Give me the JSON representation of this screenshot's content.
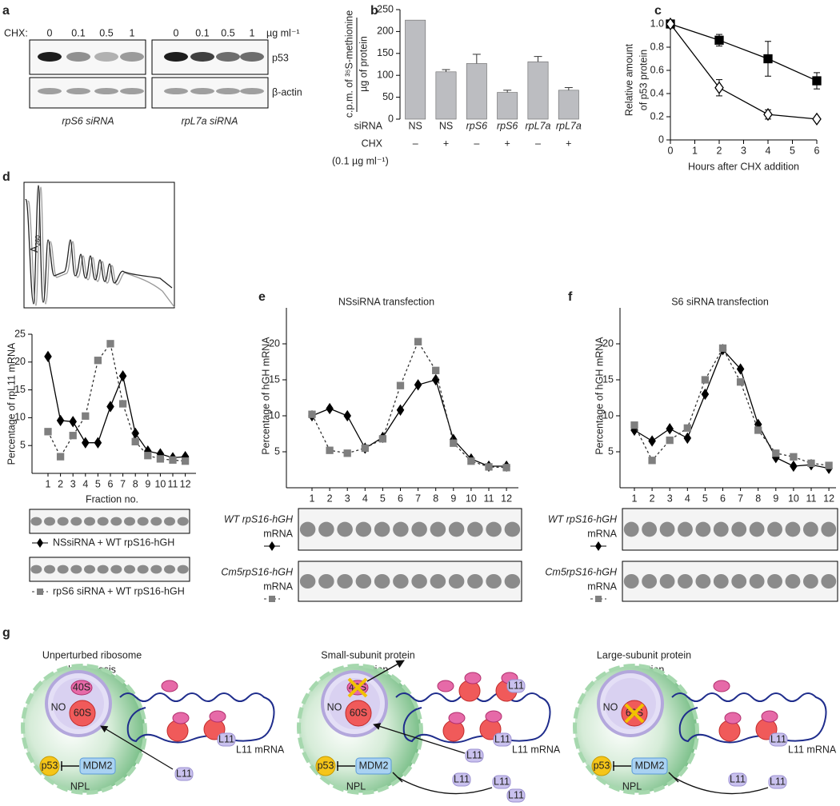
{
  "panel_labels": [
    "a",
    "b",
    "c",
    "d",
    "e",
    "f",
    "g"
  ],
  "panel_a": {
    "chx_label": "CHX:",
    "doses": [
      "0",
      "0.1",
      "0.5",
      "1"
    ],
    "unit": "µg ml⁻¹",
    "bands": [
      "p53",
      "β-actin"
    ],
    "sirnas": [
      "rpS6 siRNA",
      "rpL7a siRNA"
    ]
  },
  "panel_d": {
    "profile_label": "A",
    "profile_sub": "260"
  },
  "chart_data": [
    {
      "type": "bar",
      "ylabel": [
        "c.p.m. of ³⁵S-methionine",
        "µg of protein"
      ],
      "categories": [
        "NS",
        "NS",
        "rpS6",
        "rpS6",
        "rpL7a",
        "rpL7a"
      ],
      "chx": [
        "–",
        "+",
        "–",
        "+",
        "–",
        "+"
      ],
      "row_labels": [
        "siRNA",
        "CHX"
      ],
      "chx_note": "(0.1 µg ml⁻¹)",
      "values": [
        226,
        108,
        127,
        61,
        131,
        66
      ],
      "errors": [
        null,
        5,
        21,
        5,
        12,
        6
      ],
      "color": "#bcbdc1",
      "ylim": [
        0,
        250
      ],
      "yticks": [
        0,
        50,
        100,
        150,
        200,
        250
      ]
    },
    {
      "type": "line",
      "xlabel": "Hours after CHX addition",
      "ylabel": [
        "Relative amount",
        "of p53 protein"
      ],
      "x": [
        0,
        2,
        4,
        6
      ],
      "xlim": [
        0,
        6
      ],
      "xticks": [
        0,
        1,
        2,
        3,
        4,
        5,
        6
      ],
      "ylim": [
        0,
        1
      ],
      "yticks": [
        0,
        0.2,
        0.4,
        0.6,
        0.8,
        {
          "value": 1,
          "label": "1.0"
        }
      ],
      "series": [
        {
          "color": "#000000",
          "fill": "#000000",
          "marker": "square",
          "dash": false,
          "values": [
            1,
            0.86,
            0.7,
            0.51
          ],
          "errors": [
            null,
            0.05,
            0.15,
            0.07
          ]
        },
        {
          "color": "#000000",
          "fill": "#ffffff",
          "marker": "diamond",
          "dash": false,
          "values": [
            1,
            0.45,
            0.22,
            0.18
          ],
          "errors": [
            null,
            0.07,
            0.04,
            null
          ]
        }
      ]
    },
    {
      "type": "line",
      "ylabel": "Percentage of rpL11 mRNA",
      "xlabel": "Fraction no.",
      "categories": [
        "1",
        "2",
        "3",
        "4",
        "5",
        "6",
        "7",
        "8",
        "9",
        "10",
        "11",
        "12"
      ],
      "ylim": [
        0,
        25
      ],
      "yticks": [
        5,
        10,
        15,
        20,
        25
      ],
      "series": [
        {
          "name": "NSsiRNA + WT rpS16-hGH",
          "color": "#000000",
          "fill": "#000000",
          "marker": "diamond",
          "dash": false,
          "values": [
            21,
            9.5,
            9.3,
            5.5,
            5.5,
            12,
            17.5,
            7.2,
            4,
            3.5,
            2.8,
            3
          ]
        },
        {
          "name": "rpS6 siRNA + WT rpS16-hGH",
          "color": "#7f7f7f",
          "fill": "#7f7f7f",
          "marker": "square",
          "dash": true,
          "values": [
            7.5,
            3,
            6.8,
            10.3,
            20.3,
            23.3,
            12.5,
            5.7,
            3.2,
            2.6,
            2.4,
            2.2
          ]
        }
      ]
    },
    {
      "type": "line",
      "title": "NSsiRNA transfection",
      "ylabel": "Percentage of hGH mRNA",
      "xlabel": "Fraction no.",
      "categories": [
        "1",
        "2",
        "3",
        "4",
        "5",
        "6",
        "7",
        "8",
        "9",
        "10",
        "11",
        "12"
      ],
      "ylim": [
        0,
        25
      ],
      "yticks": [
        5,
        10,
        15,
        20
      ],
      "blot_caption": "mRNA",
      "series": [
        {
          "name": "WT rpS16-hGH",
          "color": "#000000",
          "fill": "#000000",
          "marker": "diamond",
          "dash": false,
          "values": [
            10,
            11,
            10,
            5.5,
            7,
            10.8,
            14.3,
            15,
            6.7,
            4,
            3,
            3
          ]
        },
        {
          "name": "Cm5rpS16-hGH",
          "color": "#7f7f7f",
          "fill": "#7f7f7f",
          "marker": "square",
          "dash": true,
          "values": [
            10.2,
            5.2,
            4.8,
            5.5,
            6.8,
            14.2,
            20.3,
            16.3,
            6.2,
            3.7,
            2.9,
            2.8
          ]
        }
      ]
    },
    {
      "type": "line",
      "title": "S6 siRNA transfection",
      "ylabel": "Percentage of hGH mRNA",
      "xlabel": "Fraction no.",
      "categories": [
        "1",
        "2",
        "3",
        "4",
        "5",
        "6",
        "7",
        "8",
        "9",
        "10",
        "11",
        "12"
      ],
      "ylim": [
        0,
        25
      ],
      "yticks": [
        5,
        10,
        15,
        20
      ],
      "blot_caption": "mRNA",
      "series": [
        {
          "name": "WT rpS16-hGH",
          "color": "#000000",
          "fill": "#000000",
          "marker": "diamond",
          "dash": false,
          "values": [
            8,
            6.5,
            8.2,
            6.9,
            13,
            19.2,
            16.5,
            8.8,
            4.2,
            3,
            3.2,
            2.7
          ]
        },
        {
          "name": "Cm5rpS16-hGH",
          "color": "#7f7f7f",
          "fill": "#7f7f7f",
          "marker": "square",
          "dash": true,
          "values": [
            8.7,
            3.8,
            6.6,
            8.3,
            15,
            19.4,
            14.7,
            8,
            4.8,
            4.3,
            3.4,
            3.1
          ]
        }
      ]
    }
  ],
  "diagram": {
    "panels": [
      {
        "title": [
          "Unperturbed ribosome",
          "biogenesis"
        ]
      },
      {
        "title": [
          "Small-subunit protein",
          "depletion"
        ]
      },
      {
        "title": [
          "Large-subunit protein",
          "depletion"
        ]
      }
    ],
    "small_subunit": "40S",
    "large_subunit": "60S",
    "nucleolus": "NO",
    "nucleoplasm": "NPL",
    "p53": "p53",
    "mdm2": "MDM2",
    "l11": "L11",
    "l11_mrna": "L11 mRNA"
  }
}
